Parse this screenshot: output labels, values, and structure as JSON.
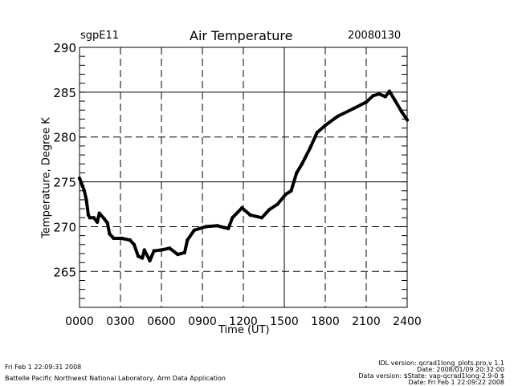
{
  "chart_data": {
    "type": "line",
    "title": "Air Temperature",
    "site": "sgpE11",
    "date": "20080130",
    "xlabel": "Time (UT)",
    "ylabel": "Temperature, Degree K",
    "xlim": [
      0,
      24
    ],
    "ylim": [
      261,
      290
    ],
    "x_tick_labels": [
      "0000",
      "0300",
      "0600",
      "0900",
      "1200",
      "1500",
      "1800",
      "2100",
      "2400"
    ],
    "x_ticks": [
      0,
      3,
      6,
      9,
      12,
      15,
      18,
      21,
      24
    ],
    "y_ticks": [
      265,
      270,
      275,
      280,
      285,
      290
    ],
    "y_tick_labels": [
      "265",
      "270",
      "275",
      "280",
      "285",
      "290"
    ],
    "grid": "on",
    "solid_grid_y": [
      275,
      285
    ],
    "solid_grid_x": [
      15
    ],
    "series": [
      {
        "name": "Air Temperature",
        "color": "#000000",
        "x": [
          0,
          0.23,
          0.35,
          0.5,
          0.65,
          0.75,
          1.05,
          1.3,
          1.45,
          1.8,
          2.05,
          2.2,
          2.5,
          3.1,
          3.7,
          4.0,
          4.3,
          4.6,
          4.75,
          5.15,
          5.45,
          6.0,
          6.6,
          7.2,
          7.7,
          7.9,
          8.4,
          9.25,
          10.1,
          10.6,
          10.9,
          11.2,
          11.9,
          12.5,
          13.35,
          13.9,
          14.5,
          15.1,
          15.5,
          15.9,
          16.3,
          16.9,
          17.4,
          18.0,
          18.9,
          20.1,
          21.0,
          21.5,
          21.95,
          22.4,
          22.7,
          23.1,
          23.6,
          24.0
        ],
        "y": [
          275.4,
          274.5,
          274.0,
          273.0,
          271.3,
          271.0,
          271.0,
          270.5,
          271.5,
          270.9,
          270.4,
          269.2,
          268.7,
          268.7,
          268.5,
          268.0,
          266.7,
          266.5,
          267.4,
          266.2,
          267.3,
          267.4,
          267.6,
          266.9,
          267.1,
          268.5,
          269.6,
          270.0,
          270.1,
          269.9,
          269.8,
          271.0,
          272.1,
          271.3,
          271.0,
          271.9,
          272.5,
          273.6,
          274.0,
          276.0,
          277.0,
          278.8,
          280.5,
          281.3,
          282.3,
          283.2,
          283.9,
          284.6,
          284.8,
          284.5,
          285.1,
          284.1,
          282.8,
          281.9
        ]
      }
    ]
  },
  "footer": {
    "run_time": "Fri Feb  1 22:09:31 2008",
    "institution": "Battelle Pacific Northwest National Laboratory, Arm Data Application",
    "idl_version": "IDL version: qcrad1long_plots.pro,v 1.1",
    "idl_date": "Date: 2008/01/09 20:32:00",
    "data_version": "Data version: $State: vap-qcrad1long-2.9-0 $",
    "data_date": "Date: Fri Feb  1 22:09:22 2008"
  }
}
